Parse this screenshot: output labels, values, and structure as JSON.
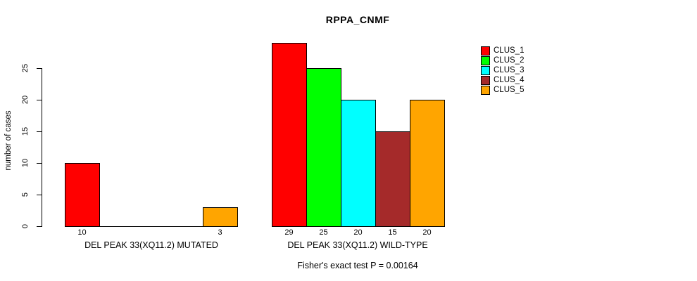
{
  "chart_data": {
    "type": "bar",
    "title": "RPPA_CNMF",
    "ylabel": "number of cases",
    "xlabel": "",
    "footnote": "Fisher's exact test P = 0.00164",
    "ylim": [
      0,
      25
    ],
    "yticks": [
      0,
      5,
      10,
      15,
      20,
      25
    ],
    "grid": false,
    "legend_position": "top-right",
    "series_names": [
      "CLUS_1",
      "CLUS_2",
      "CLUS_3",
      "CLUS_4",
      "CLUS_5"
    ],
    "series_colors": [
      "#FF0000",
      "#00FF00",
      "#00FFFF",
      "#A52A2A",
      "#FFA500"
    ],
    "groups": [
      {
        "label": "DEL PEAK 33(XQ11.2) MUTATED",
        "values": [
          10,
          0,
          0,
          0,
          3
        ]
      },
      {
        "label": "DEL PEAK 33(XQ11.2) WILD-TYPE",
        "values": [
          29,
          25,
          20,
          15,
          20
        ]
      }
    ]
  }
}
